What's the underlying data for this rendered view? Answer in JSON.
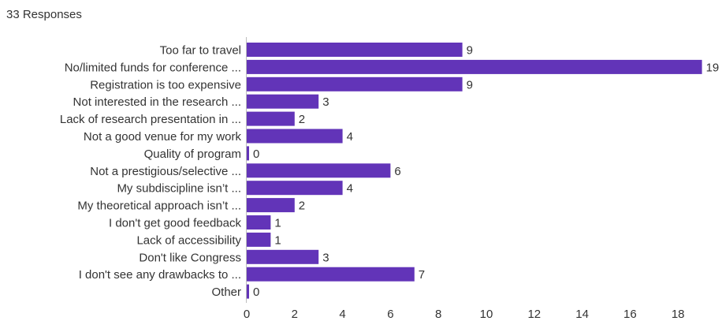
{
  "header": {
    "responses_text": "33 Responses"
  },
  "colors": {
    "bar": "#6234b8",
    "axis": "#bdbdbd",
    "text": "#333333"
  },
  "chart_data": {
    "type": "bar",
    "orientation": "horizontal",
    "categories": [
      "Too far to travel",
      "No/limited funds for conference ...",
      "Registration is too expensive",
      "Not interested in the research ...",
      "Lack of research presentation in ...",
      "Not a good venue for my work",
      "Quality of program",
      "Not a prestigious/selective ...",
      "My subdiscipline isn’t ...",
      "My theoretical approach isn’t ...",
      "I don't get good feedback",
      "Lack of accessibility",
      "Don't like Congress",
      "I don't see any drawbacks to ...",
      "Other"
    ],
    "values": [
      9,
      19,
      9,
      3,
      2,
      4,
      0,
      6,
      4,
      2,
      1,
      1,
      3,
      7,
      0
    ],
    "x_ticks": [
      0,
      2,
      4,
      6,
      8,
      10,
      12,
      14,
      16,
      18
    ],
    "xlim": [
      0,
      19
    ],
    "grid": false,
    "legend": "none"
  }
}
